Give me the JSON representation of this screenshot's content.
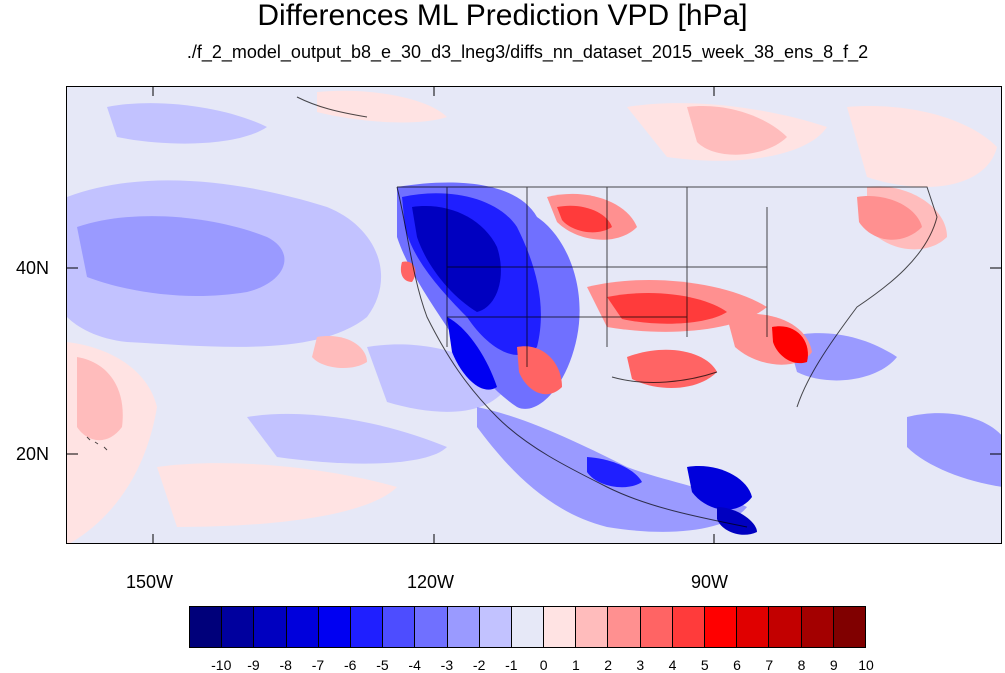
{
  "title": "Differences ML Prediction VPD [hPa]",
  "subtitle": "./f_2_model_output_b8_e_30_d3_lneg3/diffs_nn_dataset_2015_week_38_ens_8_f_2",
  "map": {
    "lon_ticks": [
      "150W",
      "120W",
      "90W"
    ],
    "lat_ticks": [
      "40N",
      "20N"
    ]
  },
  "colorbar": {
    "labels": [
      "-10",
      "-9",
      "-8",
      "-7",
      "-6",
      "-5",
      "-4",
      "-3",
      "-2",
      "-1",
      "0",
      "1",
      "2",
      "3",
      "4",
      "5",
      "6",
      "7",
      "8",
      "9",
      "10"
    ],
    "colors": [
      "#00007a",
      "#00009e",
      "#0000c0",
      "#0000dc",
      "#0000f2",
      "#1f1fff",
      "#4d4dff",
      "#7070ff",
      "#9a9aff",
      "#c2c2ff",
      "#e6e8f7",
      "#ffe3e3",
      "#ffbcbc",
      "#ff9090",
      "#ff6464",
      "#ff3b3b",
      "#ff0000",
      "#e00000",
      "#c20000",
      "#a30000",
      "#800000"
    ]
  }
}
